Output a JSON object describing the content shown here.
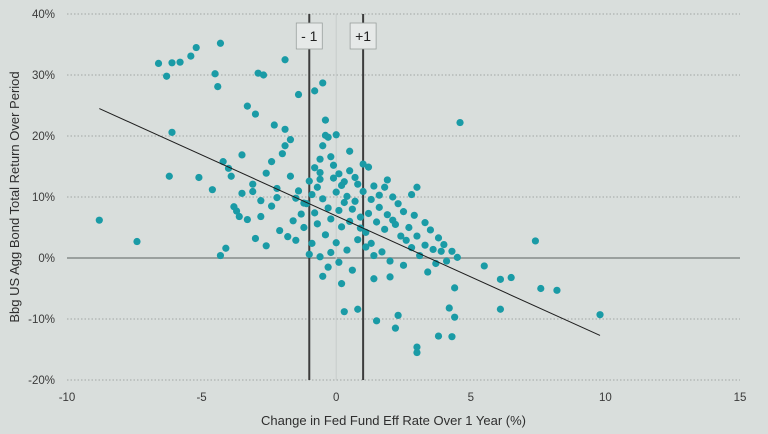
{
  "chart_data": {
    "type": "scatter",
    "title": "",
    "xlabel": "Change in Fed Fund Eff Rate Over 1 Year (%)",
    "ylabel": "Bbg US Agg Bond Total Return Over Period",
    "xlim": [
      -10,
      15
    ],
    "ylim": [
      -20,
      40
    ],
    "x_ticks": [
      -10,
      -5,
      0,
      5,
      10,
      15
    ],
    "x_tick_labels": [
      "-10",
      "-5",
      "0",
      "5",
      "10",
      "15"
    ],
    "y_ticks": [
      -20,
      -10,
      0,
      10,
      20,
      30,
      40
    ],
    "y_tick_labels": [
      "-20%",
      "-10%",
      "0%",
      "10%",
      "20%",
      "30%",
      "40%"
    ],
    "grid": "horizontal dotted",
    "point_color": "#1a9ba6",
    "reference_lines": [
      {
        "x": -1,
        "label": "- 1"
      },
      {
        "x": 1,
        "label": "+1"
      }
    ],
    "trendline": {
      "x": [
        -8.8,
        9.8
      ],
      "y": [
        24.5,
        -12.7
      ]
    },
    "points": [
      [
        -8.8,
        6.2
      ],
      [
        -7.4,
        2.7
      ],
      [
        -6.6,
        31.9
      ],
      [
        -6.3,
        29.8
      ],
      [
        -6.1,
        32.0
      ],
      [
        -5.8,
        32.1
      ],
      [
        -5.4,
        33.1
      ],
      [
        -5.2,
        34.5
      ],
      [
        -4.5,
        30.2
      ],
      [
        -4.4,
        28.1
      ],
      [
        -4.3,
        35.2
      ],
      [
        -6.2,
        13.4
      ],
      [
        -6.1,
        20.6
      ],
      [
        -5.1,
        13.2
      ],
      [
        -4.6,
        11.2
      ],
      [
        -4.3,
        0.4
      ],
      [
        -4.1,
        1.6
      ],
      [
        -3.9,
        13.4
      ],
      [
        -3.7,
        7.7
      ],
      [
        -3.5,
        16.9
      ],
      [
        -3.3,
        24.9
      ],
      [
        -3.0,
        23.6
      ],
      [
        -2.9,
        30.3
      ],
      [
        -2.7,
        30.0
      ],
      [
        -1.9,
        32.5
      ],
      [
        -1.4,
        26.8
      ],
      [
        -0.8,
        27.4
      ],
      [
        -0.5,
        28.7
      ],
      [
        -2.3,
        21.8
      ],
      [
        -1.9,
        21.1
      ],
      [
        -1.7,
        19.4
      ],
      [
        -2.0,
        17.1
      ],
      [
        -2.4,
        15.8
      ],
      [
        -3.1,
        12.1
      ],
      [
        -3.3,
        6.3
      ],
      [
        -3.6,
        6.8
      ],
      [
        -3.0,
        3.2
      ],
      [
        -2.6,
        2.0
      ],
      [
        -2.1,
        4.5
      ],
      [
        -2.4,
        8.5
      ],
      [
        -2.2,
        11.4
      ],
      [
        -1.7,
        13.4
      ],
      [
        -1.5,
        9.8
      ],
      [
        -1.3,
        7.2
      ],
      [
        -1.2,
        5.0
      ],
      [
        -1.8,
        3.5
      ],
      [
        -1.6,
        6.1
      ],
      [
        -2.8,
        9.4
      ],
      [
        -4.2,
        15.8
      ],
      [
        -4.0,
        14.7
      ],
      [
        -3.8,
        8.4
      ],
      [
        -3.5,
        10.6
      ],
      [
        -1.0,
        12.6
      ],
      [
        -0.8,
        14.8
      ],
      [
        -0.6,
        16.2
      ],
      [
        -0.5,
        18.4
      ],
      [
        -0.4,
        20.1
      ],
      [
        -0.3,
        19.8
      ],
      [
        0.0,
        20.2
      ],
      [
        -0.2,
        16.6
      ],
      [
        -0.1,
        15.2
      ],
      [
        0.1,
        13.8
      ],
      [
        0.3,
        12.5
      ],
      [
        0.5,
        14.3
      ],
      [
        0.5,
        17.5
      ],
      [
        0.8,
        12.1
      ],
      [
        1.0,
        15.4
      ],
      [
        1.2,
        14.9
      ],
      [
        1.4,
        11.8
      ],
      [
        1.6,
        10.3
      ],
      [
        1.8,
        11.6
      ],
      [
        2.1,
        10.0
      ],
      [
        2.3,
        8.9
      ],
      [
        2.5,
        7.6
      ],
      [
        2.8,
        10.4
      ],
      [
        3.0,
        11.6
      ],
      [
        2.7,
        5.0
      ],
      [
        2.6,
        2.9
      ],
      [
        3.0,
        3.6
      ],
      [
        3.3,
        2.1
      ],
      [
        3.6,
        1.4
      ],
      [
        3.9,
        1.1
      ],
      [
        4.1,
        -0.5
      ],
      [
        4.3,
        1.1
      ],
      [
        4.5,
        0.1
      ],
      [
        5.5,
        -1.3
      ],
      [
        6.1,
        -3.5
      ],
      [
        6.5,
        -3.2
      ],
      [
        7.4,
        2.8
      ],
      [
        7.6,
        -5.0
      ],
      [
        8.2,
        -5.3
      ],
      [
        9.8,
        -9.3
      ],
      [
        4.6,
        22.2
      ],
      [
        0.3,
        -8.8
      ],
      [
        0.8,
        -8.4
      ],
      [
        1.5,
        -10.3
      ],
      [
        2.3,
        -9.4
      ],
      [
        2.2,
        -11.5
      ],
      [
        3.0,
        -14.6
      ],
      [
        3.0,
        -15.5
      ],
      [
        3.8,
        -12.8
      ],
      [
        4.3,
        -12.9
      ],
      [
        4.4,
        -9.7
      ],
      [
        4.2,
        -8.2
      ],
      [
        6.1,
        -8.4
      ],
      [
        4.4,
        -4.9
      ],
      [
        3.4,
        -2.3
      ],
      [
        2.0,
        -3.1
      ],
      [
        1.4,
        -3.4
      ],
      [
        0.6,
        -2.0
      ],
      [
        0.2,
        -4.2
      ],
      [
        -0.5,
        -3.0
      ],
      [
        -0.3,
        -1.5
      ],
      [
        -1.0,
        0.6
      ],
      [
        -0.6,
        0.2
      ],
      [
        -0.9,
        2.4
      ],
      [
        -0.4,
        3.8
      ],
      [
        0.0,
        2.5
      ],
      [
        0.4,
        1.3
      ],
      [
        0.8,
        3.0
      ],
      [
        1.1,
        4.2
      ],
      [
        1.3,
        2.4
      ],
      [
        1.7,
        1.0
      ],
      [
        2.0,
        -0.5
      ],
      [
        2.5,
        -1.2
      ],
      [
        3.1,
        0.4
      ],
      [
        -0.7,
        5.6
      ],
      [
        -0.2,
        6.4
      ],
      [
        0.1,
        7.8
      ],
      [
        0.3,
        9.1
      ],
      [
        0.6,
        8.0
      ],
      [
        0.9,
        6.7
      ],
      [
        1.2,
        7.3
      ],
      [
        1.5,
        5.9
      ],
      [
        1.8,
        4.7
      ],
      [
        2.2,
        5.5
      ],
      [
        2.4,
        3.6
      ],
      [
        -1.1,
        8.9
      ],
      [
        -0.9,
        10.4
      ],
      [
        -0.7,
        11.6
      ],
      [
        -0.5,
        9.7
      ],
      [
        -0.3,
        8.2
      ],
      [
        0.0,
        10.8
      ],
      [
        0.2,
        11.9
      ],
      [
        0.4,
        10.1
      ],
      [
        0.7,
        9.3
      ],
      [
        1.0,
        10.9
      ],
      [
        1.3,
        9.6
      ],
      [
        1.6,
        8.3
      ],
      [
        1.9,
        7.1
      ],
      [
        2.1,
        6.2
      ],
      [
        2.9,
        7.0
      ],
      [
        3.3,
        5.8
      ],
      [
        3.5,
        4.6
      ],
      [
        3.8,
        3.3
      ],
      [
        4.0,
        2.2
      ],
      [
        -1.4,
        11.0
      ],
      [
        -1.2,
        9.0
      ],
      [
        -0.8,
        7.4
      ],
      [
        -0.6,
        12.9
      ],
      [
        -0.1,
        13.1
      ],
      [
        0.2,
        5.1
      ],
      [
        0.5,
        6.0
      ],
      [
        0.9,
        4.9
      ],
      [
        1.1,
        1.8
      ],
      [
        1.4,
        0.4
      ],
      [
        -0.2,
        0.9
      ],
      [
        0.1,
        -0.7
      ],
      [
        2.8,
        1.7
      ],
      [
        3.7,
        -0.9
      ],
      [
        -2.6,
        13.9
      ],
      [
        -2.8,
        6.8
      ],
      [
        -3.1,
        10.9
      ],
      [
        -1.5,
        2.9
      ],
      [
        -0.4,
        22.6
      ],
      [
        -0.6,
        14.0
      ],
      [
        0.7,
        13.2
      ],
      [
        1.9,
        12.8
      ],
      [
        -1.9,
        18.4
      ],
      [
        -2.2,
        9.9
      ]
    ]
  }
}
